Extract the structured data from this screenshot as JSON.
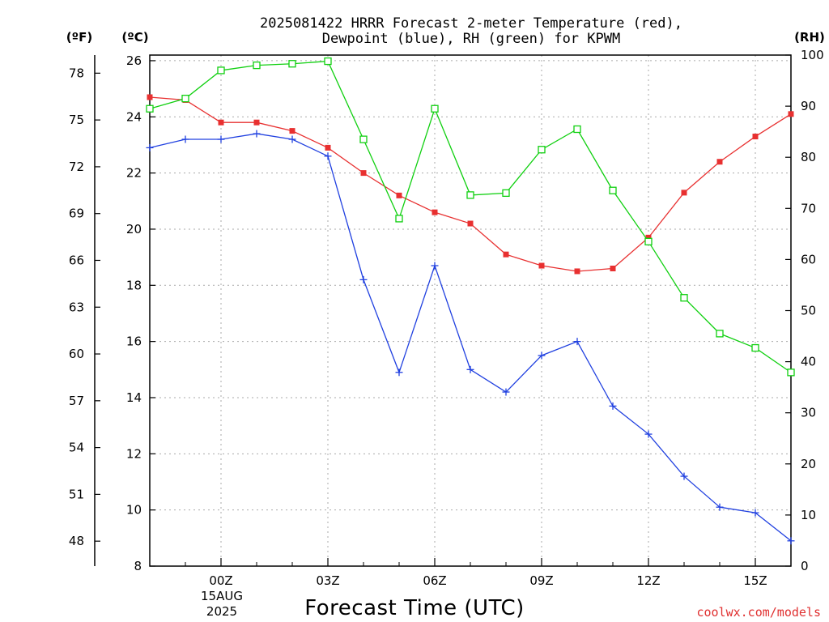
{
  "chart_data": {
    "type": "line",
    "title_lines": [
      "2025081422 HRRR Forecast 2-meter Temperature (red),",
      "Dewpoint (blue), RH (green) for KPWM"
    ],
    "xlabel": "Forecast Time (UTC)",
    "x_ticks": [
      "00Z",
      "03Z",
      "06Z",
      "09Z",
      "12Z",
      "15Z"
    ],
    "x_tick_hours": [
      2,
      5,
      8,
      11,
      14,
      17
    ],
    "date_label": [
      "15AUG",
      "2025"
    ],
    "x_hours": [
      0,
      1,
      2,
      3,
      4,
      5,
      6,
      7,
      8,
      9,
      10,
      11,
      12,
      13,
      14,
      15,
      16,
      17,
      18
    ],
    "xlim": [
      0,
      18
    ],
    "left_unit_f": "(ºF)",
    "left_unit_c": "(ºC)",
    "right_unit": "(RH)",
    "ylim_c": [
      8,
      26.2
    ],
    "ylim_rh": [
      0,
      100
    ],
    "c_ticks": [
      8,
      10,
      12,
      14,
      16,
      18,
      20,
      22,
      24,
      26
    ],
    "f_ticks": [
      48,
      51,
      54,
      57,
      60,
      63,
      66,
      69,
      72,
      75,
      78
    ],
    "rh_ticks": [
      0,
      10,
      20,
      30,
      40,
      50,
      60,
      70,
      80,
      90,
      100
    ],
    "grid": true,
    "series": [
      {
        "name": "Temperature (red)",
        "axis": "celsius",
        "color": "#e83030",
        "marker": "filled-square",
        "values": [
          24.7,
          24.6,
          23.8,
          23.8,
          23.5,
          22.9,
          22.0,
          21.2,
          20.6,
          20.2,
          19.1,
          18.7,
          18.5,
          18.6,
          19.7,
          21.3,
          22.4,
          23.3,
          24.1
        ]
      },
      {
        "name": "Dewpoint (blue)",
        "axis": "celsius",
        "color": "#2040e0",
        "marker": "plus",
        "values": [
          22.9,
          23.2,
          23.2,
          23.4,
          23.2,
          22.6,
          18.2,
          14.9,
          18.7,
          15.0,
          14.2,
          15.5,
          16.0,
          13.7,
          12.7,
          11.2,
          10.1,
          9.9,
          8.9
        ]
      },
      {
        "name": "RH (green)",
        "axis": "rh",
        "color": "#10d010",
        "marker": "open-square",
        "values": [
          89.5,
          91.5,
          97,
          98,
          98.3,
          98.8,
          83.5,
          68,
          89.5,
          72.6,
          73,
          81.5,
          85.5,
          73.5,
          63.5,
          52.5,
          45.5,
          42.7,
          37.9
        ]
      }
    ],
    "credit": "coolwx.com/models"
  }
}
